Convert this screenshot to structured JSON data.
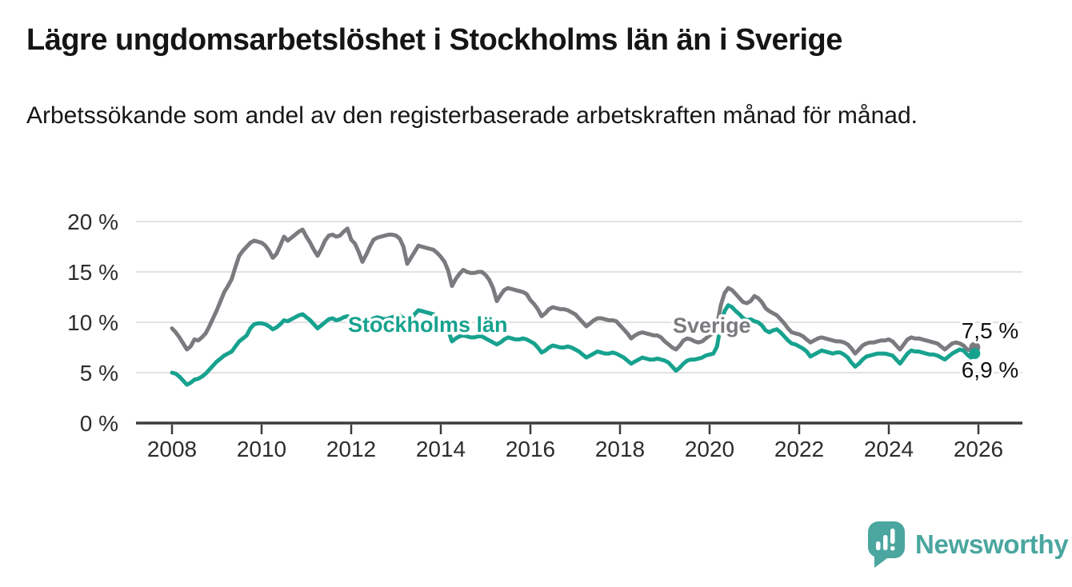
{
  "header": {
    "title": "Lägre ungdomsarbetslöshet i Stockholms län än i Sverige",
    "subtitle": "Arbetssökande som andel av den registerbaserade arbetskraften månad för månad."
  },
  "footer": {
    "brand_name": "Newsworthy",
    "brand_color": "#4aa69f",
    "logo_icon": "speech-bubble-bar-chart"
  },
  "chart_data": {
    "type": "line",
    "unit": "%",
    "frequency": "monthly",
    "x_start_year": 2008,
    "x_end_year": 2026,
    "ylim": [
      0,
      20
    ],
    "grid": true,
    "legend_position": "inline",
    "y_ticks": [
      {
        "label": "0 %",
        "value": 0
      },
      {
        "label": "5 %",
        "value": 5
      },
      {
        "label": "10 %",
        "value": 10
      },
      {
        "label": "15 %",
        "value": 15
      },
      {
        "label": "20 %",
        "value": 20
      }
    ],
    "x_ticks": [
      {
        "label": "2008",
        "year": 2008
      },
      {
        "label": "2010",
        "year": 2010
      },
      {
        "label": "2012",
        "year": 2012
      },
      {
        "label": "2014",
        "year": 2014
      },
      {
        "label": "2016",
        "year": 2016
      },
      {
        "label": "2018",
        "year": 2018
      },
      {
        "label": "2020",
        "year": 2020
      },
      {
        "label": "2022",
        "year": 2022
      },
      {
        "label": "2024",
        "year": 2024
      },
      {
        "label": "2026",
        "year": 2026
      }
    ],
    "series": [
      {
        "name": "Sverige",
        "color": "#7b7b7f",
        "inline_label": {
          "text": "Sverige",
          "year": 2020.05,
          "pct": 9.7
        },
        "end_label": {
          "text": "7,5 %",
          "year": 2025.62,
          "pct": 9.2
        },
        "values": [
          9.4,
          9.0,
          8.5,
          7.9,
          7.3,
          7.6,
          8.3,
          8.2,
          8.5,
          8.9,
          9.6,
          10.4,
          11.2,
          12.1,
          13.0,
          13.6,
          14.3,
          15.5,
          16.6,
          17.1,
          17.5,
          17.9,
          18.1,
          18.0,
          17.9,
          17.6,
          17.1,
          16.4,
          16.8,
          17.6,
          18.5,
          18.1,
          18.4,
          18.7,
          19.0,
          19.2,
          18.5,
          17.9,
          17.2,
          16.6,
          17.3,
          18.1,
          18.6,
          18.7,
          18.5,
          18.6,
          19.0,
          19.3,
          18.2,
          17.8,
          17.0,
          16.0,
          16.7,
          17.5,
          18.2,
          18.4,
          18.5,
          18.6,
          18.7,
          18.7,
          18.6,
          18.3,
          17.5,
          15.8,
          16.4,
          17.0,
          17.6,
          17.5,
          17.4,
          17.3,
          17.2,
          16.9,
          16.5,
          16.0,
          15.1,
          13.6,
          14.3,
          14.8,
          15.2,
          15.0,
          14.9,
          14.9,
          15.0,
          15.0,
          14.7,
          14.2,
          13.4,
          12.1,
          12.7,
          13.2,
          13.4,
          13.3,
          13.2,
          13.1,
          13.0,
          12.8,
          12.2,
          11.8,
          11.3,
          10.6,
          10.9,
          11.3,
          11.5,
          11.4,
          11.3,
          11.3,
          11.2,
          11.0,
          10.8,
          10.4,
          10.0,
          9.6,
          9.9,
          10.2,
          10.4,
          10.4,
          10.3,
          10.2,
          10.2,
          10.1,
          9.7,
          9.3,
          8.9,
          8.4,
          8.7,
          8.9,
          9.0,
          8.9,
          8.8,
          8.7,
          8.7,
          8.5,
          8.1,
          7.8,
          7.5,
          7.3,
          7.7,
          8.2,
          8.4,
          8.3,
          8.1,
          8.0,
          8.1,
          8.4,
          8.7,
          8.9,
          9.7,
          11.7,
          12.9,
          13.4,
          13.2,
          12.8,
          12.4,
          12.0,
          11.9,
          12.1,
          12.6,
          12.4,
          12.0,
          11.4,
          11.1,
          10.9,
          10.7,
          10.3,
          9.9,
          9.4,
          9.0,
          8.9,
          8.8,
          8.6,
          8.3,
          8.0,
          8.2,
          8.4,
          8.5,
          8.4,
          8.3,
          8.2,
          8.1,
          8.1,
          8.0,
          7.8,
          7.4,
          6.9,
          7.3,
          7.7,
          7.9,
          8.0,
          8.0,
          8.1,
          8.2,
          8.2,
          8.3,
          8.1,
          7.7,
          7.3,
          7.8,
          8.3,
          8.5,
          8.4,
          8.4,
          8.3,
          8.2,
          8.1,
          8.0,
          7.9,
          7.6,
          7.3,
          7.6,
          7.9,
          8.0,
          7.9,
          7.7,
          7.3,
          7.2,
          7.5
        ]
      },
      {
        "name": "Stockholms län",
        "color": "#17a28f",
        "inline_label": {
          "text": "Stockholms län",
          "year": 2013.71,
          "pct": 9.75
        },
        "end_label": {
          "text": "6,9 %",
          "year": 2025.62,
          "pct": 5.3
        },
        "values": [
          5.0,
          4.9,
          4.6,
          4.2,
          3.8,
          4.0,
          4.3,
          4.4,
          4.6,
          4.9,
          5.3,
          5.7,
          6.1,
          6.4,
          6.7,
          6.9,
          7.1,
          7.6,
          8.1,
          8.4,
          8.7,
          9.4,
          9.8,
          9.9,
          9.9,
          9.8,
          9.6,
          9.3,
          9.5,
          9.8,
          10.2,
          10.1,
          10.3,
          10.5,
          10.7,
          10.8,
          10.5,
          10.2,
          9.8,
          9.4,
          9.7,
          10.0,
          10.3,
          10.4,
          10.2,
          10.3,
          10.5,
          10.6,
          10.4,
          10.2,
          9.9,
          9.6,
          9.8,
          10.1,
          10.4,
          10.5,
          10.4,
          10.3,
          10.4,
          10.5,
          10.6,
          10.7,
          10.4,
          9.9,
          10.3,
          10.8,
          11.2,
          11.1,
          11.0,
          10.9,
          10.8,
          10.5,
          10.2,
          9.8,
          9.2,
          8.1,
          8.4,
          8.6,
          8.7,
          8.6,
          8.5,
          8.5,
          8.6,
          8.6,
          8.4,
          8.2,
          8.0,
          7.8,
          8.0,
          8.3,
          8.5,
          8.4,
          8.3,
          8.3,
          8.4,
          8.3,
          8.1,
          7.9,
          7.5,
          7.0,
          7.2,
          7.5,
          7.7,
          7.6,
          7.5,
          7.5,
          7.6,
          7.5,
          7.3,
          7.1,
          6.8,
          6.5,
          6.7,
          6.9,
          7.1,
          7.0,
          6.9,
          6.9,
          7.0,
          6.9,
          6.7,
          6.5,
          6.2,
          5.9,
          6.1,
          6.3,
          6.5,
          6.4,
          6.3,
          6.3,
          6.4,
          6.3,
          6.2,
          6.0,
          5.6,
          5.2,
          5.5,
          5.9,
          6.2,
          6.3,
          6.3,
          6.4,
          6.5,
          6.7,
          6.8,
          6.9,
          7.6,
          9.8,
          11.1,
          11.7,
          11.5,
          11.1,
          10.8,
          10.4,
          10.2,
          10.3,
          10.1,
          10.0,
          9.7,
          9.2,
          9.0,
          9.2,
          9.3,
          9.0,
          8.6,
          8.2,
          7.9,
          7.8,
          7.6,
          7.4,
          7.1,
          6.6,
          6.8,
          7.0,
          7.2,
          7.1,
          7.0,
          6.9,
          7.0,
          7.0,
          6.8,
          6.5,
          6.0,
          5.6,
          5.9,
          6.3,
          6.6,
          6.7,
          6.8,
          6.9,
          6.9,
          6.9,
          6.8,
          6.7,
          6.3,
          5.9,
          6.4,
          6.9,
          7.2,
          7.1,
          7.1,
          7.0,
          6.9,
          6.8,
          6.8,
          6.7,
          6.5,
          6.3,
          6.6,
          6.9,
          7.1,
          7.3,
          7.2,
          6.8,
          6.5,
          6.9
        ]
      }
    ]
  }
}
